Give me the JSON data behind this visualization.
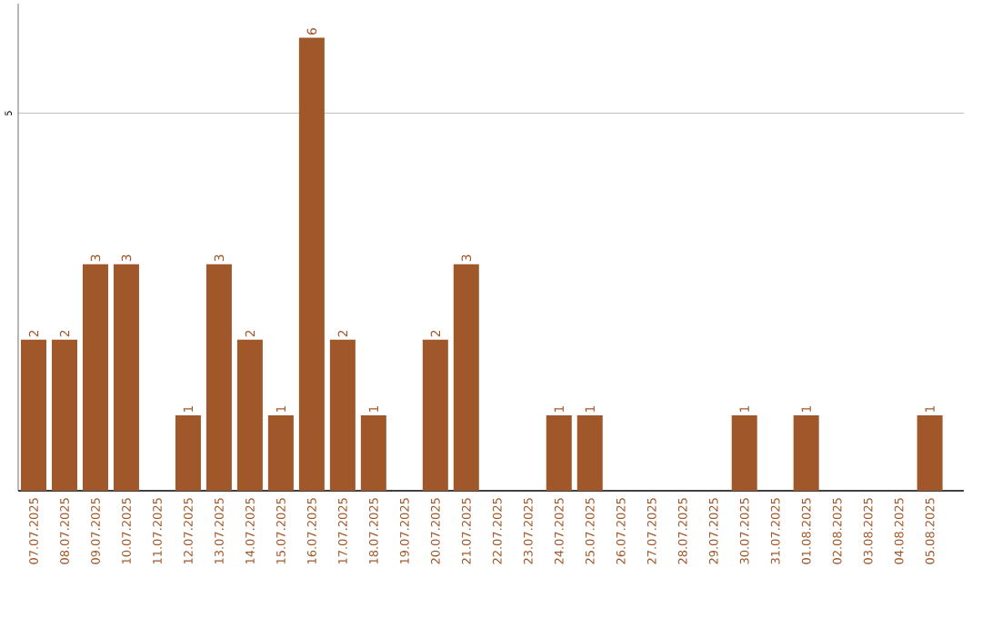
{
  "chart_data": {
    "type": "bar",
    "categories": [
      "07.07.2025",
      "08.07.2025",
      "09.07.2025",
      "10.07.2025",
      "11.07.2025",
      "12.07.2025",
      "13.07.2025",
      "14.07.2025",
      "15.07.2025",
      "16.07.2025",
      "17.07.2025",
      "18.07.2025",
      "19.07.2025",
      "20.07.2025",
      "21.07.2025",
      "22.07.2025",
      "23.07.2025",
      "24.07.2025",
      "25.07.2025",
      "26.07.2025",
      "27.07.2025",
      "28.07.2025",
      "29.07.2025",
      "30.07.2025",
      "31.07.2025",
      "01.08.2025",
      "02.08.2025",
      "03.08.2025",
      "04.08.2025",
      "05.08.2025"
    ],
    "values": [
      2,
      2,
      3,
      3,
      0,
      1,
      3,
      2,
      1,
      6,
      2,
      1,
      0,
      2,
      3,
      0,
      0,
      1,
      1,
      0,
      0,
      0,
      0,
      1,
      0,
      1,
      0,
      0,
      0,
      1
    ],
    "value_labels": [
      "2",
      "2",
      "3",
      "3",
      null,
      "1",
      "3",
      "2",
      "1",
      "6",
      "2",
      "1",
      null,
      "2",
      "3",
      null,
      null,
      "1",
      "1",
      null,
      null,
      null,
      null,
      "1",
      null,
      "1",
      null,
      null,
      null,
      "1"
    ],
    "color": "#a0582a",
    "ylim": [
      0,
      6.45
    ],
    "yticks": [
      5
    ],
    "grid": "y"
  }
}
